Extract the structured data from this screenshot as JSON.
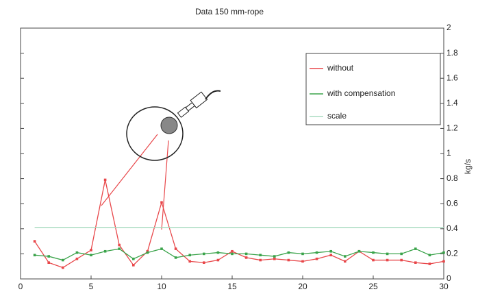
{
  "chart_data": {
    "type": "line",
    "title": "Data 150 mm-rope",
    "y_label": "kg/s",
    "x": [
      1,
      2,
      3,
      4,
      5,
      6,
      7,
      8,
      9,
      10,
      11,
      12,
      13,
      14,
      15,
      16,
      17,
      18,
      19,
      20,
      21,
      22,
      23,
      24,
      25,
      26,
      27,
      28,
      29,
      30
    ],
    "series": [
      {
        "name": "without",
        "color": "#e8474a",
        "values": [
          0.3,
          0.13,
          0.09,
          0.16,
          0.23,
          0.79,
          0.27,
          0.11,
          0.22,
          0.61,
          0.24,
          0.14,
          0.13,
          0.15,
          0.22,
          0.17,
          0.15,
          0.16,
          0.15,
          0.14,
          0.16,
          0.19,
          0.14,
          0.22,
          0.15,
          0.15,
          0.15,
          0.13,
          0.12,
          0.14
        ]
      },
      {
        "name": "with compensation",
        "color": "#3aa34a",
        "values": [
          0.19,
          0.18,
          0.15,
          0.21,
          0.19,
          0.22,
          0.24,
          0.16,
          0.21,
          0.24,
          0.17,
          0.19,
          0.2,
          0.21,
          0.2,
          0.2,
          0.19,
          0.18,
          0.21,
          0.2,
          0.21,
          0.22,
          0.18,
          0.22,
          0.21,
          0.2,
          0.2,
          0.24,
          0.19,
          0.21
        ]
      },
      {
        "name": "scale",
        "color": "#a8dcc0",
        "values": [
          0.41,
          0.41,
          0.41,
          0.41,
          0.41,
          0.41,
          0.41,
          0.41,
          0.41,
          0.41,
          0.41,
          0.41,
          0.41,
          0.41,
          0.41,
          0.41,
          0.41,
          0.41,
          0.41,
          0.41,
          0.41,
          0.41,
          0.41,
          0.41,
          0.41,
          0.41,
          0.41,
          0.41,
          0.41,
          0.41
        ]
      }
    ],
    "xlim": [
      0,
      30
    ],
    "xticks": [
      0,
      5,
      10,
      15,
      20,
      25,
      30
    ],
    "ylim": [
      0,
      2
    ],
    "yticks": [
      0,
      0.2,
      0.4,
      0.6,
      0.8,
      1,
      1.2,
      1.4,
      1.6,
      1.8,
      2
    ]
  }
}
